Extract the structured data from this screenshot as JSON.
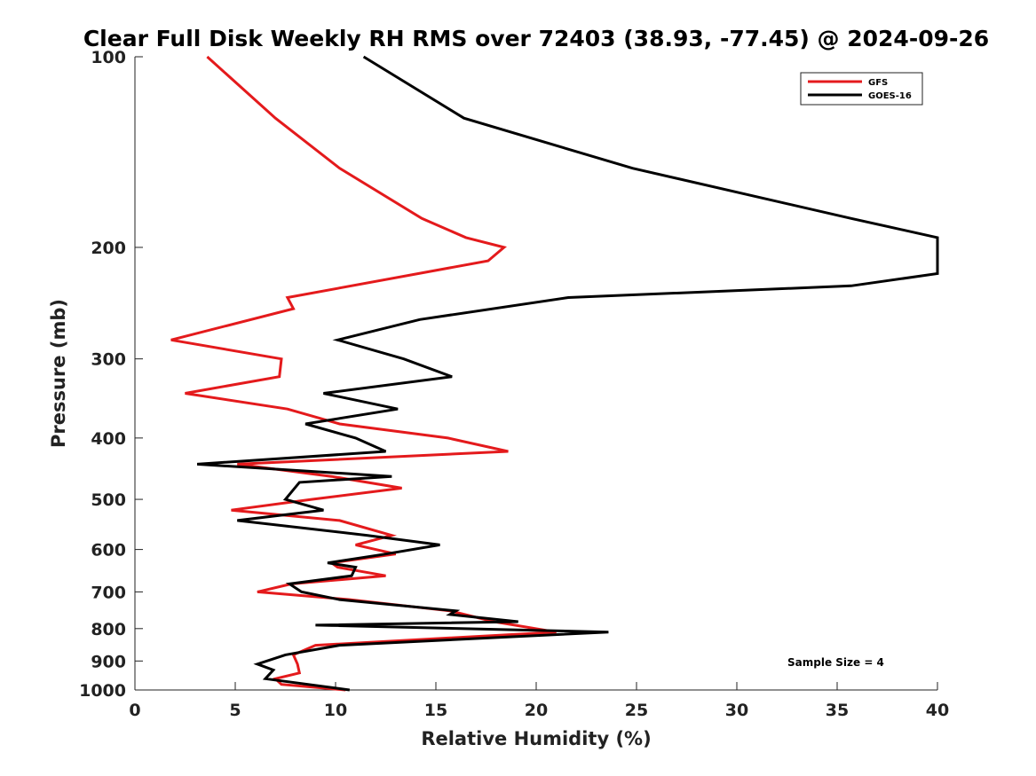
{
  "chart_data": {
    "type": "line",
    "title": "Clear Full Disk Weekly RH RMS over 72403 (38.93, -77.45) @ 2024-09-26",
    "xlabel": "Relative Humidity (%)",
    "ylabel": "Pressure (mb)",
    "xlim": [
      0,
      40
    ],
    "ylim": [
      100,
      1000
    ],
    "yscale": "log",
    "y_reversed": true,
    "grid": false,
    "x_ticks": [
      "0",
      "5",
      "10",
      "15",
      "20",
      "25",
      "30",
      "35",
      "40"
    ],
    "y_ticks": [
      "100",
      "200",
      "300",
      "400",
      "500",
      "600",
      "700",
      "800",
      "900",
      "1000"
    ],
    "legend_position": "top-right",
    "annotation": "Sample Size = 4",
    "series": [
      {
        "name": "GFS",
        "color": "#e41a1c",
        "x": [
          3.6,
          7.0,
          10.2,
          14.3,
          16.5,
          18.4,
          17.6,
          7.6,
          7.9,
          1.8,
          7.3,
          7.2,
          2.5,
          7.6,
          10.2,
          15.6,
          18.6,
          5.1,
          9.8,
          13.3,
          8.8,
          4.8,
          10.2,
          12.8,
          11.0,
          13.0,
          9.8,
          10.1,
          12.5,
          7.8,
          6.1,
          10.7,
          15.7,
          17.9,
          21.0,
          9.0,
          7.9,
          8.1,
          8.2,
          7.0,
          7.3,
          10.5
        ],
        "y": [
          100,
          125,
          150,
          180,
          193,
          200,
          210,
          240,
          250,
          280,
          300,
          320,
          340,
          360,
          380,
          400,
          420,
          440,
          460,
          480,
          500,
          520,
          540,
          570,
          590,
          610,
          630,
          640,
          660,
          680,
          700,
          720,
          750,
          780,
          810,
          850,
          880,
          910,
          940,
          960,
          980,
          1000
        ]
      },
      {
        "name": "GOES-16",
        "color": "#000000",
        "x": [
          11.4,
          16.4,
          24.8,
          35.7,
          40.0,
          40.0,
          35.7,
          21.6,
          14.2,
          10.1,
          13.4,
          15.8,
          9.4,
          13.1,
          8.5,
          11.0,
          12.5,
          3.1,
          12.8,
          8.2,
          7.5,
          9.4,
          5.1,
          11.6,
          15.2,
          12.5,
          9.6,
          11.0,
          10.8,
          7.7,
          8.3,
          10.2,
          16.0,
          15.7,
          19.1,
          9.0,
          23.6,
          10.2,
          7.5,
          6.1,
          6.9,
          6.5,
          10.7
        ],
        "y": [
          100,
          125,
          150,
          180,
          193,
          220,
          230,
          240,
          260,
          280,
          300,
          320,
          340,
          360,
          380,
          400,
          420,
          440,
          460,
          470,
          500,
          520,
          540,
          570,
          590,
          610,
          630,
          640,
          660,
          680,
          700,
          720,
          750,
          760,
          780,
          790,
          810,
          850,
          880,
          910,
          930,
          960,
          1000
        ]
      }
    ]
  }
}
